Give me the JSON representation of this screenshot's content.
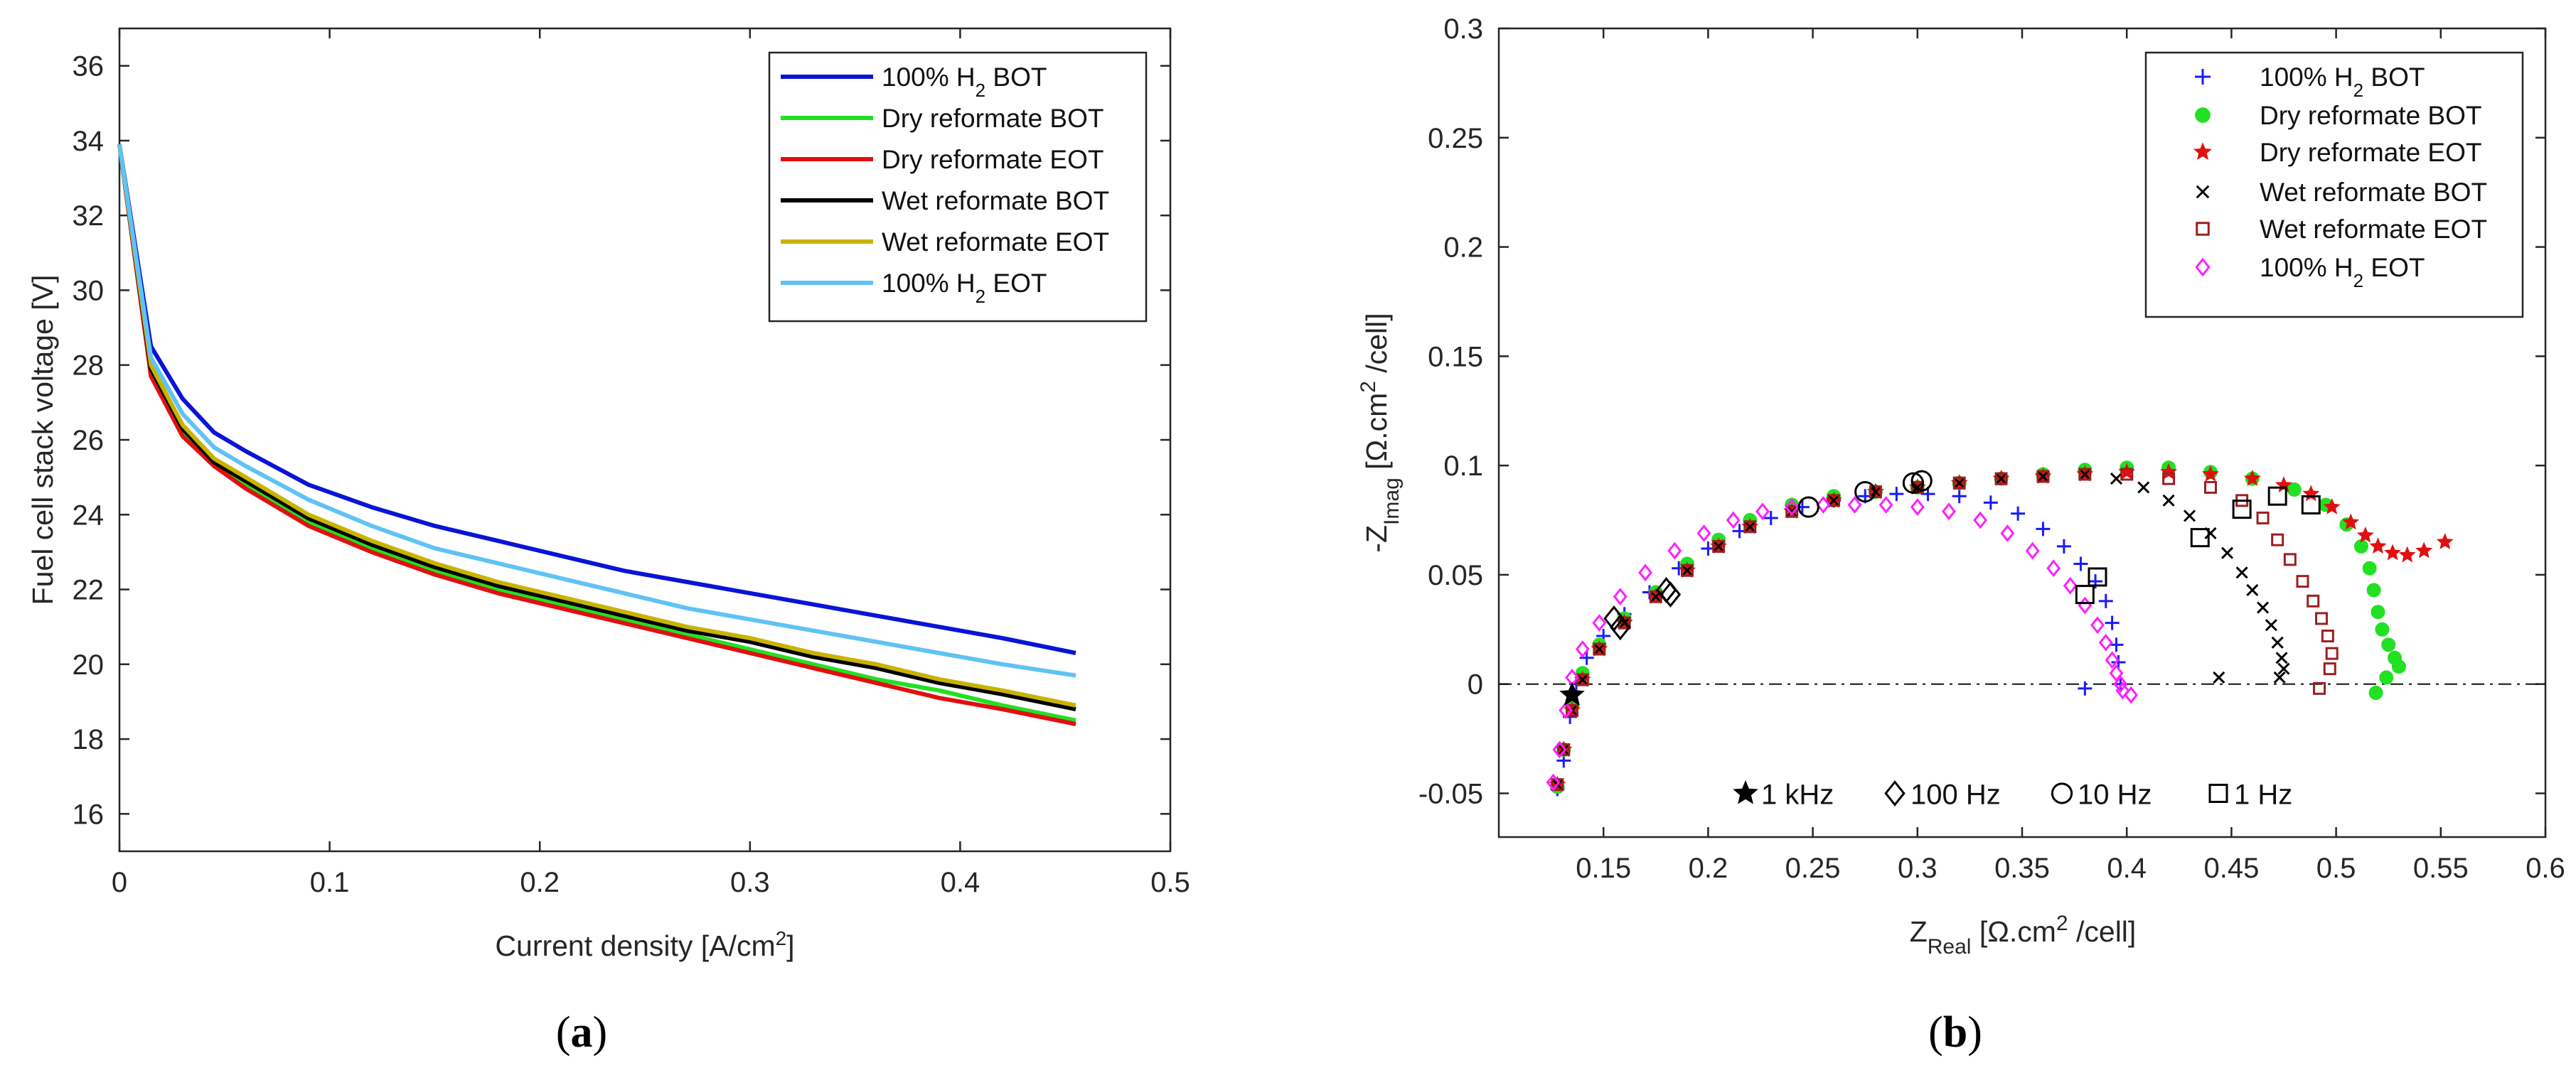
{
  "chart_data": [
    {
      "type": "line",
      "caption": "(a)",
      "caption_letter": "a",
      "xlabel": "Current density [A/cm",
      "xlabel_sup": "2",
      "xlabel_end": "]",
      "ylabel": "Fuel cell stack voltage [V]",
      "xlim": [
        0,
        0.5
      ],
      "ylim": [
        15,
        37
      ],
      "xticks": [
        0,
        0.1,
        0.2,
        0.3,
        0.4,
        0.5
      ],
      "xtick_labels": [
        "0",
        "0.1",
        "0.2",
        "0.3",
        "0.4",
        "0.5"
      ],
      "yticks": [
        16,
        18,
        20,
        22,
        24,
        26,
        28,
        30,
        32,
        34,
        36
      ],
      "ytick_labels": [
        "16",
        "18",
        "20",
        "22",
        "24",
        "26",
        "28",
        "30",
        "32",
        "34",
        "36"
      ],
      "legend_position": "top-right",
      "series": [
        {
          "name": "100% H2 BOT",
          "label": "100% H",
          "sub": "2",
          "suffix": " BOT",
          "color": "#0a14d6",
          "x": [
            0,
            0.015,
            0.03,
            0.045,
            0.06,
            0.09,
            0.12,
            0.15,
            0.18,
            0.21,
            0.24,
            0.27,
            0.3,
            0.33,
            0.36,
            0.39,
            0.42,
            0.455
          ],
          "y": [
            33.9,
            28.5,
            27.1,
            26.2,
            25.7,
            24.8,
            24.2,
            23.7,
            23.3,
            22.9,
            22.5,
            22.2,
            21.9,
            21.6,
            21.3,
            21.0,
            20.7,
            20.3
          ]
        },
        {
          "name": "Dry reformate BOT",
          "label": "Dry reformate BOT",
          "sub": "",
          "suffix": "",
          "color": "#22e022",
          "x": [
            0,
            0.015,
            0.03,
            0.045,
            0.06,
            0.09,
            0.12,
            0.15,
            0.18,
            0.21,
            0.24,
            0.27,
            0.3,
            0.33,
            0.36,
            0.39,
            0.42,
            0.455
          ],
          "y": [
            33.9,
            27.8,
            26.2,
            25.3,
            24.8,
            23.8,
            23.1,
            22.5,
            22.0,
            21.6,
            21.2,
            20.8,
            20.4,
            20.0,
            19.6,
            19.3,
            18.9,
            18.5
          ]
        },
        {
          "name": "Dry reformate EOT",
          "label": "Dry reformate EOT",
          "sub": "",
          "suffix": "",
          "color": "#e01010",
          "x": [
            0,
            0.015,
            0.03,
            0.045,
            0.06,
            0.09,
            0.12,
            0.15,
            0.18,
            0.21,
            0.24,
            0.27,
            0.3,
            0.33,
            0.36,
            0.39,
            0.42,
            0.455
          ],
          "y": [
            33.9,
            27.7,
            26.1,
            25.3,
            24.7,
            23.7,
            23.0,
            22.4,
            21.9,
            21.5,
            21.1,
            20.7,
            20.3,
            19.9,
            19.5,
            19.1,
            18.8,
            18.4
          ]
        },
        {
          "name": "Wet reformate BOT",
          "label": "Wet reformate BOT",
          "sub": "",
          "suffix": "",
          "color": "#000000",
          "x": [
            0,
            0.015,
            0.03,
            0.045,
            0.06,
            0.09,
            0.12,
            0.15,
            0.18,
            0.21,
            0.24,
            0.27,
            0.3,
            0.33,
            0.36,
            0.39,
            0.42,
            0.455
          ],
          "y": [
            33.9,
            27.9,
            26.3,
            25.4,
            24.9,
            23.9,
            23.2,
            22.6,
            22.1,
            21.7,
            21.3,
            20.9,
            20.6,
            20.2,
            19.9,
            19.5,
            19.2,
            18.8
          ]
        },
        {
          "name": "Wet reformate EOT",
          "label": "Wet reformate EOT",
          "sub": "",
          "suffix": "",
          "color": "#c8b400",
          "x": [
            0,
            0.015,
            0.03,
            0.045,
            0.06,
            0.09,
            0.12,
            0.15,
            0.18,
            0.21,
            0.24,
            0.27,
            0.3,
            0.33,
            0.36,
            0.39,
            0.42,
            0.455
          ],
          "y": [
            33.9,
            28.0,
            26.4,
            25.5,
            25.0,
            24.0,
            23.3,
            22.7,
            22.2,
            21.8,
            21.4,
            21.0,
            20.7,
            20.3,
            20.0,
            19.6,
            19.3,
            18.9
          ]
        },
        {
          "name": "100% H2 EOT",
          "label": "100% H",
          "sub": "2",
          "suffix": " EOT",
          "color": "#5fc3f3",
          "x": [
            0,
            0.015,
            0.03,
            0.045,
            0.06,
            0.09,
            0.12,
            0.15,
            0.18,
            0.21,
            0.24,
            0.27,
            0.3,
            0.33,
            0.36,
            0.39,
            0.42,
            0.455
          ],
          "y": [
            33.9,
            28.2,
            26.7,
            25.8,
            25.3,
            24.4,
            23.7,
            23.1,
            22.7,
            22.3,
            21.9,
            21.5,
            21.2,
            20.9,
            20.6,
            20.3,
            20.0,
            19.7
          ]
        }
      ]
    },
    {
      "type": "scatter",
      "caption": "(b)",
      "caption_letter": "b",
      "xlabel": "Z",
      "xlabel_sub": "Real",
      "xlabel_rest": " [Ω.cm",
      "xlabel_sup": "2",
      "xlabel_end": " /cell]",
      "ylabel": "-Z",
      "ylabel_sub": "Imag",
      "ylabel_rest": " [Ω.cm",
      "ylabel_sup": "2",
      "ylabel_end": " /cell]",
      "xlim": [
        0.1,
        0.6
      ],
      "ylim": [
        -0.07,
        0.3
      ],
      "xticks": [
        0.15,
        0.2,
        0.25,
        0.3,
        0.35,
        0.4,
        0.45,
        0.5,
        0.55,
        0.6
      ],
      "xtick_labels": [
        "0.15",
        "0.2",
        "0.25",
        "0.3",
        "0.35",
        "0.4",
        "0.45",
        "0.5",
        "0.55",
        "0.6"
      ],
      "yticks": [
        -0.05,
        0,
        0.05,
        0.1,
        0.15,
        0.2,
        0.25,
        0.3
      ],
      "ytick_labels": [
        "-0.05",
        "0",
        "0.05",
        "0.1",
        "0.15",
        "0.2",
        "0.25",
        "0.3"
      ],
      "zero_line": 0,
      "legend_position": "top-right",
      "series": [
        {
          "name": "100% H2 BOT",
          "label": "100% H",
          "sub": "2",
          "suffix": " BOT",
          "color": "#1a1aff",
          "marker": "plus",
          "x": [
            0.128,
            0.131,
            0.134,
            0.137,
            0.142,
            0.15,
            0.16,
            0.172,
            0.186,
            0.2,
            0.215,
            0.23,
            0.245,
            0.26,
            0.275,
            0.29,
            0.305,
            0.32,
            0.335,
            0.348,
            0.36,
            0.37,
            0.378,
            0.385,
            0.39,
            0.393,
            0.395,
            0.396,
            0.397,
            0.38
          ],
          "y": [
            -0.048,
            -0.035,
            -0.015,
            0.0,
            0.012,
            0.022,
            0.032,
            0.042,
            0.053,
            0.062,
            0.07,
            0.076,
            0.081,
            0.084,
            0.086,
            0.087,
            0.087,
            0.086,
            0.083,
            0.078,
            0.071,
            0.063,
            0.055,
            0.047,
            0.038,
            0.028,
            0.018,
            0.01,
            0.0,
            -0.002
          ]
        },
        {
          "name": "Dry reformate BOT",
          "label": "Dry reformate BOT",
          "sub": "",
          "suffix": "",
          "color": "#22e022",
          "marker": "circle",
          "x": [
            0.128,
            0.131,
            0.135,
            0.14,
            0.148,
            0.16,
            0.175,
            0.19,
            0.205,
            0.22,
            0.24,
            0.26,
            0.28,
            0.3,
            0.32,
            0.34,
            0.36,
            0.38,
            0.4,
            0.42,
            0.44,
            0.46,
            0.48,
            0.495,
            0.505,
            0.512,
            0.516,
            0.518,
            0.52,
            0.522,
            0.525,
            0.528,
            0.53,
            0.524,
            0.519
          ],
          "y": [
            -0.047,
            -0.03,
            -0.01,
            0.005,
            0.018,
            0.03,
            0.042,
            0.055,
            0.066,
            0.075,
            0.082,
            0.086,
            0.088,
            0.09,
            0.092,
            0.094,
            0.096,
            0.098,
            0.099,
            0.099,
            0.097,
            0.094,
            0.089,
            0.082,
            0.073,
            0.063,
            0.053,
            0.043,
            0.033,
            0.025,
            0.018,
            0.012,
            0.008,
            0.003,
            -0.004
          ]
        },
        {
          "name": "Dry reformate EOT",
          "label": "Dry reformate EOT",
          "sub": "",
          "suffix": "",
          "color": "#e01010",
          "marker": "star",
          "x": [
            0.128,
            0.131,
            0.135,
            0.14,
            0.148,
            0.16,
            0.175,
            0.19,
            0.205,
            0.22,
            0.24,
            0.26,
            0.28,
            0.3,
            0.32,
            0.34,
            0.36,
            0.38,
            0.4,
            0.42,
            0.44,
            0.46,
            0.475,
            0.488,
            0.498,
            0.507,
            0.514,
            0.52,
            0.527,
            0.534,
            0.542,
            0.552
          ],
          "y": [
            -0.046,
            -0.03,
            -0.012,
            0.002,
            0.016,
            0.028,
            0.04,
            0.052,
            0.063,
            0.072,
            0.079,
            0.084,
            0.088,
            0.09,
            0.092,
            0.094,
            0.095,
            0.096,
            0.097,
            0.097,
            0.096,
            0.094,
            0.091,
            0.087,
            0.081,
            0.074,
            0.068,
            0.063,
            0.06,
            0.059,
            0.061,
            0.065
          ]
        },
        {
          "name": "Wet reformate BOT",
          "label": "Wet reformate BOT",
          "sub": "",
          "suffix": "",
          "color": "#000000",
          "marker": "x",
          "x": [
            0.128,
            0.131,
            0.135,
            0.14,
            0.148,
            0.16,
            0.175,
            0.19,
            0.205,
            0.22,
            0.24,
            0.26,
            0.28,
            0.3,
            0.32,
            0.34,
            0.36,
            0.38,
            0.395,
            0.408,
            0.42,
            0.43,
            0.44,
            0.448,
            0.455,
            0.46,
            0.465,
            0.469,
            0.472,
            0.474,
            0.475,
            0.473,
            0.444
          ],
          "y": [
            -0.046,
            -0.03,
            -0.012,
            0.002,
            0.016,
            0.028,
            0.04,
            0.052,
            0.063,
            0.072,
            0.079,
            0.084,
            0.088,
            0.09,
            0.092,
            0.094,
            0.095,
            0.096,
            0.094,
            0.09,
            0.084,
            0.077,
            0.069,
            0.06,
            0.051,
            0.043,
            0.035,
            0.027,
            0.019,
            0.012,
            0.007,
            0.003,
            0.003
          ]
        },
        {
          "name": "Wet reformate EOT",
          "label": "Wet reformate EOT",
          "sub": "",
          "suffix": "",
          "color": "#9a2020",
          "marker": "square",
          "x": [
            0.128,
            0.131,
            0.135,
            0.14,
            0.148,
            0.16,
            0.175,
            0.19,
            0.205,
            0.22,
            0.24,
            0.26,
            0.28,
            0.3,
            0.32,
            0.34,
            0.36,
            0.38,
            0.4,
            0.42,
            0.44,
            0.455,
            0.465,
            0.472,
            0.478,
            0.484,
            0.489,
            0.493,
            0.496,
            0.498,
            0.497,
            0.492
          ],
          "y": [
            -0.046,
            -0.03,
            -0.012,
            0.002,
            0.016,
            0.028,
            0.04,
            0.052,
            0.063,
            0.072,
            0.079,
            0.084,
            0.088,
            0.09,
            0.092,
            0.094,
            0.095,
            0.096,
            0.096,
            0.094,
            0.09,
            0.084,
            0.076,
            0.066,
            0.057,
            0.047,
            0.038,
            0.03,
            0.022,
            0.014,
            0.007,
            -0.002
          ]
        },
        {
          "name": "100% H2 EOT",
          "label": "100% H",
          "sub": "2",
          "suffix": " EOT",
          "color": "#ff20ff",
          "marker": "diamond",
          "x": [
            0.126,
            0.129,
            0.132,
            0.135,
            0.14,
            0.148,
            0.158,
            0.17,
            0.184,
            0.198,
            0.212,
            0.226,
            0.24,
            0.255,
            0.27,
            0.285,
            0.3,
            0.315,
            0.33,
            0.343,
            0.355,
            0.365,
            0.373,
            0.38,
            0.386,
            0.39,
            0.393,
            0.395,
            0.397,
            0.398,
            0.402
          ],
          "y": [
            -0.045,
            -0.03,
            -0.012,
            0.003,
            0.016,
            0.028,
            0.04,
            0.051,
            0.061,
            0.069,
            0.075,
            0.079,
            0.081,
            0.082,
            0.082,
            0.082,
            0.081,
            0.079,
            0.075,
            0.069,
            0.061,
            0.053,
            0.045,
            0.036,
            0.027,
            0.019,
            0.011,
            0.005,
            0.0,
            -0.003,
            -0.005
          ]
        }
      ],
      "frequency_markers": {
        "color": "#000000",
        "labels": [
          "1 kHz",
          "100 Hz",
          "10 Hz",
          "1 Hz"
        ],
        "points": [
          {
            "freq": "1 kHz",
            "marker": "star",
            "x": 0.135,
            "y": -0.005
          },
          {
            "freq": "100 Hz",
            "marker": "diamond",
            "x": 0.155,
            "y": 0.03
          },
          {
            "freq": "100 Hz",
            "marker": "diamond",
            "x": 0.158,
            "y": 0.026
          },
          {
            "freq": "100 Hz",
            "marker": "diamond",
            "x": 0.18,
            "y": 0.043
          },
          {
            "freq": "100 Hz",
            "marker": "diamond",
            "x": 0.182,
            "y": 0.041
          },
          {
            "freq": "10 Hz",
            "marker": "circle",
            "x": 0.248,
            "y": 0.081
          },
          {
            "freq": "10 Hz",
            "marker": "circle",
            "x": 0.275,
            "y": 0.088
          },
          {
            "freq": "10 Hz",
            "marker": "circle",
            "x": 0.298,
            "y": 0.092
          },
          {
            "freq": "10 Hz",
            "marker": "circle",
            "x": 0.302,
            "y": 0.093
          },
          {
            "freq": "1 Hz",
            "marker": "square",
            "x": 0.38,
            "y": 0.041
          },
          {
            "freq": "1 Hz",
            "marker": "square",
            "x": 0.386,
            "y": 0.049
          },
          {
            "freq": "1 Hz",
            "marker": "square",
            "x": 0.435,
            "y": 0.067
          },
          {
            "freq": "1 Hz",
            "marker": "square",
            "x": 0.455,
            "y": 0.08
          },
          {
            "freq": "1 Hz",
            "marker": "square",
            "x": 0.472,
            "y": 0.086
          },
          {
            "freq": "1 Hz",
            "marker": "square",
            "x": 0.488,
            "y": 0.082
          }
        ]
      }
    }
  ]
}
